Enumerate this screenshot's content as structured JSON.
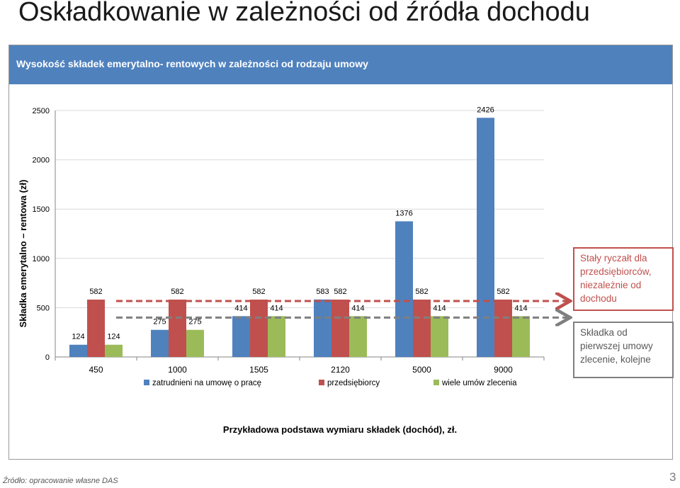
{
  "slide": {
    "title": "Oskładkowanie w zależności od źródła dochodu",
    "source": "Źródło: opracowanie własne DAS",
    "page_number": "3"
  },
  "chart_data": {
    "type": "bar",
    "title": "Wysokość składek  emerytalno- rentowych w zależności od rodzaju umowy",
    "xlabel": "Przykładowa podstawa wymiaru składek (dochód), zł.",
    "ylabel": "Składka emerytalno – rentowa (zł)",
    "ylim": [
      0,
      2500
    ],
    "yticks": [
      0,
      500,
      1000,
      1500,
      2000,
      2500
    ],
    "grid": true,
    "legend_position": "bottom",
    "categories": [
      "450",
      "1000",
      "1505",
      "2120",
      "5000",
      "9000"
    ],
    "series": [
      {
        "name": "zatrudnieni na umowę o pracę",
        "color": "#4f81bd",
        "values": [
          124,
          275,
          414,
          583,
          1376,
          2426
        ]
      },
      {
        "name": "przedsiębiorcy",
        "color": "#c0504d",
        "values": [
          582,
          582,
          582,
          582,
          582,
          582
        ]
      },
      {
        "name": "wiele umów zlecenia",
        "color": "#9bbb59",
        "values": [
          124,
          275,
          414,
          414,
          414,
          414
        ]
      }
    ],
    "reference_lines": [
      {
        "value": 582,
        "color": "#c0504d",
        "label": "Stały ryczałt dla przedsiębiorców, niezależnie od dochodu"
      },
      {
        "value": 414,
        "color": "#7f7f7f",
        "label": "Składka od pierwszej umowy zlecenie, kolejne"
      }
    ]
  }
}
